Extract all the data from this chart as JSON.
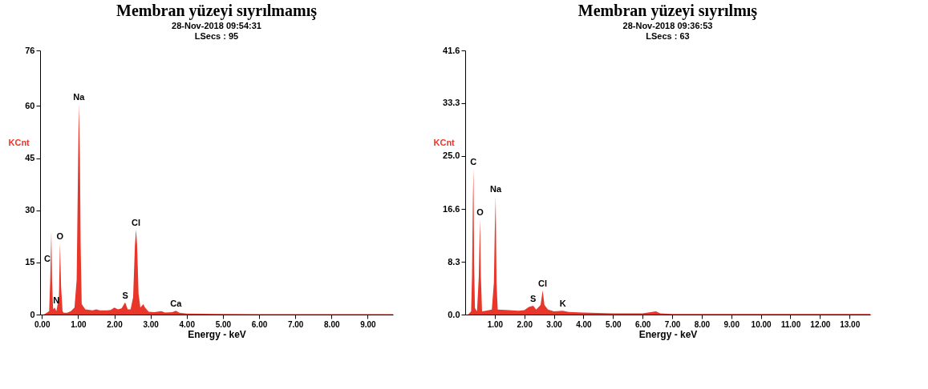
{
  "chart_data": [
    {
      "type": "area",
      "title": "Membran yüzeyi sıyrılmamış",
      "subtitle": "28-Nov-2018 09:54:31",
      "xlabel": "Energy - keV",
      "ylabel": "KCnt",
      "x": [
        0.05,
        0.1,
        0.2,
        0.23,
        0.26,
        0.28,
        0.31,
        0.35,
        0.4,
        0.47,
        0.5,
        0.53,
        0.57,
        0.6,
        0.7,
        0.8,
        0.9,
        0.96,
        1.0,
        1.02,
        1.05,
        1.07,
        1.1,
        1.2,
        1.4,
        1.5,
        1.6,
        1.8,
        1.9,
        2.0,
        2.1,
        2.2,
        2.3,
        2.37,
        2.45,
        2.52,
        2.57,
        2.6,
        2.63,
        2.67,
        2.72,
        2.8,
        2.85,
        2.95,
        3.1,
        3.3,
        3.4,
        3.6,
        3.7,
        3.8,
        4.0,
        5.0,
        6.0,
        7.0,
        8.0,
        9.0,
        9.7
      ],
      "series": [
        {
          "color": "#e8372a",
          "values": [
            0,
            0.3,
            1,
            10,
            24,
            10,
            1.5,
            2,
            1,
            5,
            20.5,
            8,
            1,
            0.5,
            0.5,
            1,
            2,
            10,
            44,
            60.5,
            45,
            20,
            3,
            1.5,
            1.2,
            1.5,
            1.2,
            1.2,
            1.3,
            2,
            1.5,
            1.8,
            3.5,
            1.5,
            1.5,
            5,
            20,
            24.5,
            20,
            6,
            2,
            3,
            2,
            0.8,
            0.7,
            1,
            0.6,
            0.7,
            1.1,
            0.5,
            0.3,
            0.2,
            0.1,
            0.1,
            0.1,
            0.1,
            0.1
          ]
        }
      ],
      "xlim": [
        -0.05,
        9.7
      ],
      "xticks": [
        {
          "value": 0,
          "label": "0.00"
        },
        {
          "value": 1,
          "label": "1.00"
        },
        {
          "value": 2,
          "label": "2.00"
        },
        {
          "value": 3,
          "label": "3.00"
        },
        {
          "value": 4,
          "label": "4.00"
        },
        {
          "value": 5,
          "label": "5.00"
        },
        {
          "value": 6,
          "label": "6.00"
        },
        {
          "value": 7,
          "label": "7.00"
        },
        {
          "value": 8,
          "label": "8.00"
        },
        {
          "value": 9,
          "label": "9.00"
        }
      ],
      "ylim": [
        0,
        76
      ],
      "yticks": [
        0,
        15,
        30,
        45,
        60,
        76
      ],
      "annotations": [
        "LSecs :  95",
        {
          "text": "C",
          "x": 0.15,
          "y": 14
        },
        {
          "text": "N",
          "x": 0.4,
          "y": 2
        },
        {
          "text": "O",
          "x": 0.5,
          "y": 20.5
        },
        {
          "text": "Na",
          "x": 1.02,
          "y": 60.5
        },
        {
          "text": "S",
          "x": 2.3,
          "y": 3.5
        },
        {
          "text": "Cl",
          "x": 2.6,
          "y": 24.5
        },
        {
          "text": "Ca",
          "x": 3.7,
          "y": 1.1
        }
      ]
    },
    {
      "type": "area",
      "title": "Membran yüzeyi sıyrılmış",
      "subtitle": "28-Nov-2018 09:36:53",
      "xlabel": "Energy - keV",
      "ylabel": "KCnt",
      "x": [
        0.1,
        0.2,
        0.23,
        0.26,
        0.28,
        0.3,
        0.33,
        0.4,
        0.46,
        0.5,
        0.53,
        0.57,
        0.7,
        0.9,
        0.97,
        1.0,
        1.03,
        1.06,
        1.1,
        1.5,
        1.8,
        2.0,
        2.15,
        2.3,
        2.4,
        2.55,
        2.62,
        2.68,
        2.8,
        3.0,
        3.3,
        3.5,
        4.0,
        5.0,
        6.0,
        6.45,
        6.6,
        7.0,
        9.0,
        11.0,
        13.7
      ],
      "series": [
        {
          "color": "#e8372a",
          "values": [
            0,
            0.5,
            6,
            18,
            23,
            8,
            1,
            0.5,
            6,
            15,
            6,
            0.5,
            0.6,
            0.8,
            5,
            13,
            18.6,
            5,
            0.8,
            0.7,
            0.6,
            0.7,
            1.2,
            1.4,
            0.8,
            1.5,
            3.8,
            1.5,
            0.8,
            0.5,
            0.6,
            0.4,
            0.3,
            0.2,
            0.2,
            0.5,
            0.2,
            0.1,
            0.1,
            0.1,
            0.1
          ]
        }
      ],
      "xlim": [
        0,
        13.7
      ],
      "xticks": [
        {
          "value": 1,
          "label": "1.00"
        },
        {
          "value": 2,
          "label": "2.00"
        },
        {
          "value": 3,
          "label": "3.00"
        },
        {
          "value": 4,
          "label": "4.00"
        },
        {
          "value": 5,
          "label": "5.00"
        },
        {
          "value": 6,
          "label": "6.00"
        },
        {
          "value": 7,
          "label": "7.00"
        },
        {
          "value": 8,
          "label": "8.00"
        },
        {
          "value": 9,
          "label": "9.00"
        },
        {
          "value": 10,
          "label": "10.00"
        },
        {
          "value": 11,
          "label": "11.00"
        },
        {
          "value": 12,
          "label": "12.00"
        },
        {
          "value": 13,
          "label": "13.00"
        }
      ],
      "ylim": [
        0,
        41.6
      ],
      "yticks": [
        {
          "value": 0,
          "label": "0.0"
        },
        8.3,
        16.6,
        {
          "value": 25,
          "label": "25.0"
        },
        33.3,
        41.6
      ],
      "annotations": [
        "LSecs :  63",
        {
          "text": "C",
          "x": 0.28,
          "y": 23
        },
        {
          "text": "O",
          "x": 0.5,
          "y": 15
        },
        {
          "text": "Na",
          "x": 1.03,
          "y": 18.6
        },
        {
          "text": "S",
          "x": 2.3,
          "y": 1.4
        },
        {
          "text": "Cl",
          "x": 2.62,
          "y": 3.8
        },
        {
          "text": "K",
          "x": 3.3,
          "y": 0.6
        }
      ]
    }
  ]
}
